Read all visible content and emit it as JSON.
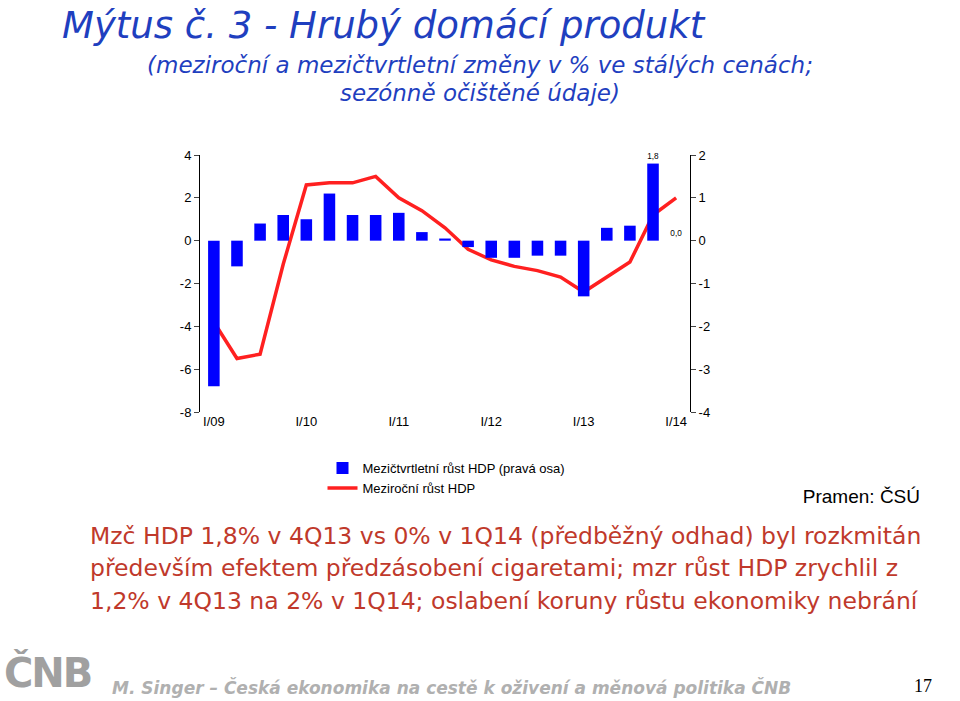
{
  "chart_data": {
    "type": "bar",
    "title": "Mýtus č. 3 - Hrubý domácí produkt",
    "subtitle": "(meziroční a mezičtvrtletní změny v % ve stálých cenách; sezónně očištěné údaje)",
    "categories": [
      "I/09",
      null,
      null,
      null,
      "I/10",
      null,
      null,
      null,
      "I/11",
      null,
      null,
      null,
      "I/12",
      null,
      null,
      null,
      "I/13",
      null,
      null,
      null,
      "I/14"
    ],
    "series": [
      {
        "name": "Mezičtvrtletní růst HDP (pravá osa)",
        "type": "bar",
        "axis": "y2",
        "color": "#0000ff",
        "values": [
          -3.4,
          -0.6,
          0.4,
          0.6,
          0.5,
          1.1,
          0.6,
          0.6,
          0.65,
          0.2,
          0.05,
          -0.15,
          -0.4,
          -0.4,
          -0.35,
          -0.35,
          -1.3,
          0.3,
          0.35,
          1.8,
          0.0
        ],
        "value_labels": [
          null,
          null,
          null,
          null,
          null,
          null,
          null,
          null,
          null,
          null,
          null,
          null,
          null,
          null,
          null,
          null,
          null,
          null,
          null,
          "1,8",
          "0,0"
        ]
      },
      {
        "name": "Meziroční růst HDP",
        "type": "line",
        "color": "#ff2020",
        "values": [
          -3.8,
          -5.5,
          -5.3,
          -1.1,
          2.6,
          2.7,
          2.7,
          3.0,
          2.0,
          1.4,
          0.6,
          -0.4,
          -0.9,
          -1.2,
          -1.4,
          -1.7,
          -2.4,
          -1.7,
          -1.0,
          1.2,
          2.0
        ]
      }
    ],
    "data_labels": true,
    "ylim": [
      -8,
      4
    ],
    "yticks": [
      -8,
      -6,
      -4,
      -2,
      0,
      2,
      4
    ],
    "y2lim": [
      -4,
      2
    ],
    "y2ticks": [
      -4,
      -3,
      -2,
      -1,
      0,
      1,
      2
    ],
    "grid": false,
    "legend": "bottom",
    "annotations": {
      "source": "Pramen: ČSÚ",
      "body": "Mzč HDP 1,8% v 4Q13 vs 0% v 1Q14 (předběžný odhad) byl rozkmitán především efektem předzásobení cigaretami; mzr růst HDP zrychlil z 1,2% v 4Q13 na 2% v 1Q14; oslabení koruny růstu ekonomiky nebrání",
      "logo": "ČNB",
      "footer": "M. Singer – Česká ekonomika na cestě k oživení a měnová politika ČNB",
      "page": "17"
    }
  }
}
